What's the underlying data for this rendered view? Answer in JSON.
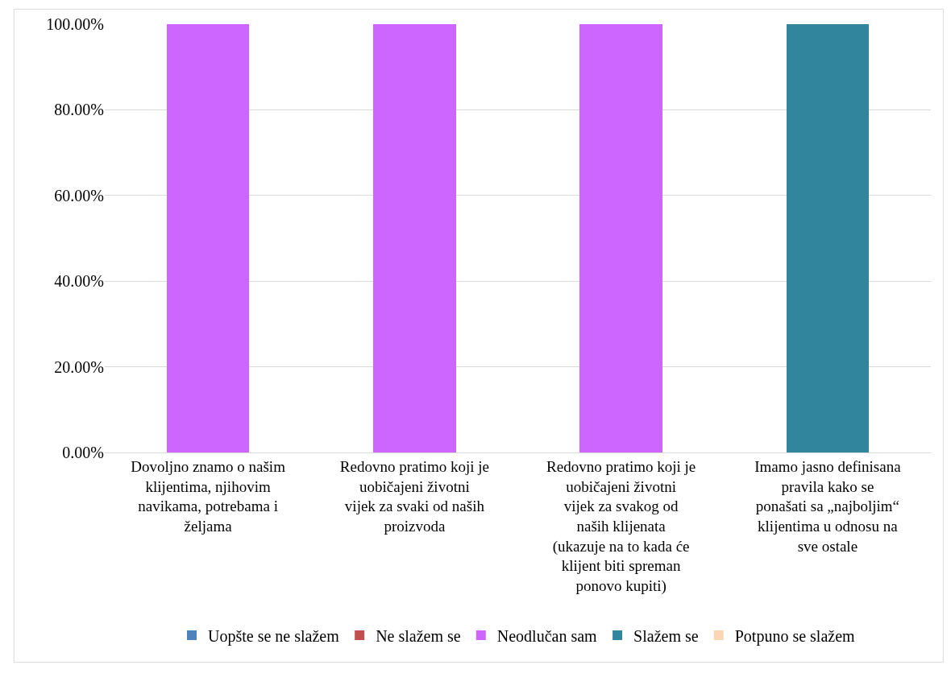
{
  "chart_data": {
    "type": "bar",
    "stacked": true,
    "categories": [
      "Dovoljno znamo o našim klijentima, njihovim navikama, potrebama i željama",
      "Redovno pratimo koji je uobičajeni životni vijek za svaki od naših proizvoda",
      "Redovno pratimo koji je uobičajeni životni vijek za svakog od naših klijenata (ukazuje na to kada će klijent biti spreman ponovo kupiti)",
      "Imamo jasno definisana pravila kako se ponašati sa „najboljim“ klijentima u odnosu na sve ostale"
    ],
    "series": [
      {
        "name": "Uopšte se ne slažem",
        "color": "#4f81bd",
        "values": [
          0,
          0,
          0,
          0
        ]
      },
      {
        "name": "Ne slažem se",
        "color": "#c0504d",
        "values": [
          0,
          0,
          0,
          0
        ]
      },
      {
        "name": "Neodlučan sam",
        "color": "#cc66ff",
        "values": [
          100,
          100,
          100,
          0
        ]
      },
      {
        "name": "Slažem se",
        "color": "#31859c",
        "values": [
          0,
          0,
          0,
          100
        ]
      },
      {
        "name": "Potpuno se slažem",
        "color": "#fcd5b5",
        "values": [
          0,
          0,
          0,
          0
        ]
      }
    ],
    "ylim": [
      0,
      100
    ],
    "yticks": [
      {
        "value": 0,
        "label": "0.00%"
      },
      {
        "value": 20,
        "label": "20.00%"
      },
      {
        "value": 40,
        "label": "40.00%"
      },
      {
        "value": 60,
        "label": "60.00%"
      },
      {
        "value": 80,
        "label": "80.00%"
      },
      {
        "value": 100,
        "label": "100.00%"
      }
    ],
    "grid": "y",
    "legend": "bottom"
  }
}
